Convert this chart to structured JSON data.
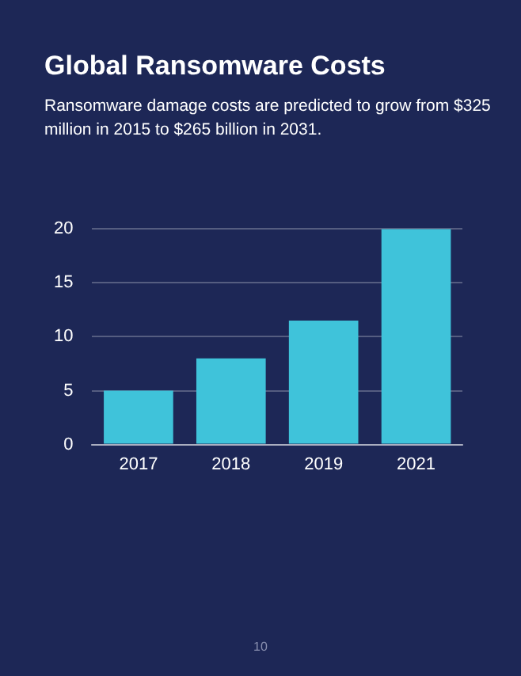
{
  "chart_data": {
    "type": "bar",
    "title": "Global Ransomware Costs",
    "subtitle": "Ransomware damage costs are predicted to grow from $325 million in 2015 to $265 billion in 2031.",
    "categories": [
      "2017",
      "2018",
      "2019",
      "2021"
    ],
    "values": [
      5,
      8,
      11.5,
      20
    ],
    "color": "#3fc3da",
    "ylim": [
      0,
      20
    ],
    "yticks": [
      0,
      5,
      10,
      15,
      20
    ],
    "grid": "y",
    "annotations": [
      "10"
    ]
  }
}
